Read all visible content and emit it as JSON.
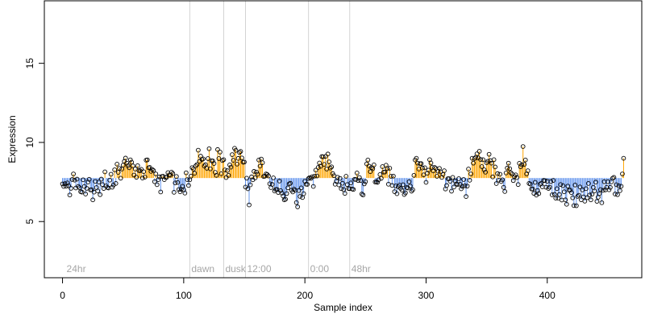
{
  "chart_data": {
    "type": "scatter",
    "title": "",
    "xlabel": "Sample index",
    "ylabel": "Expression",
    "xlim": [
      -15,
      478
    ],
    "ylim": [
      1.45,
      18.95
    ],
    "x_ticks": [
      0,
      100,
      200,
      300,
      400
    ],
    "y_ticks": [
      5,
      10,
      15
    ],
    "baseline": 7.75,
    "colors": {
      "above": "#FFA500",
      "below": "#6495ED",
      "event_lines": "#D3D3D3",
      "event_labels": "#A6A6A6",
      "points": "#000000"
    },
    "event_markers": [
      {
        "label": "24hr",
        "x": 2
      },
      {
        "label": "dawn",
        "x": 105
      },
      {
        "label": "dusk",
        "x": 133
      },
      {
        "label": "12:00",
        "x": 151
      },
      {
        "label": "0:00",
        "x": 203
      },
      {
        "label": "48hr",
        "x": 237
      }
    ],
    "anchors": [
      [
        0,
        7.0
      ],
      [
        4,
        7.6
      ],
      [
        8,
        7.0
      ],
      [
        12,
        7.6
      ],
      [
        16,
        7.0
      ],
      [
        20,
        7.2
      ],
      [
        24,
        6.9
      ],
      [
        28,
        6.8
      ],
      [
        32,
        7.2
      ],
      [
        36,
        7.6
      ],
      [
        40,
        7.3
      ],
      [
        44,
        7.9
      ],
      [
        48,
        8.2
      ],
      [
        52,
        8.6
      ],
      [
        56,
        8.5
      ],
      [
        60,
        8.3
      ],
      [
        64,
        8.0
      ],
      [
        68,
        8.6
      ],
      [
        72,
        8.7
      ],
      [
        76,
        8.2
      ],
      [
        80,
        7.4
      ],
      [
        84,
        7.8
      ],
      [
        88,
        8.0
      ],
      [
        92,
        7.7
      ],
      [
        96,
        7.3
      ],
      [
        100,
        7.0
      ],
      [
        104,
        7.6
      ],
      [
        108,
        8.3
      ],
      [
        112,
        8.8
      ],
      [
        116,
        9.1
      ],
      [
        120,
        9.0
      ],
      [
        124,
        8.9
      ],
      [
        128,
        8.8
      ],
      [
        132,
        8.8
      ],
      [
        136,
        8.6
      ],
      [
        140,
        9.1
      ],
      [
        144,
        9.2
      ],
      [
        148,
        9.0
      ],
      [
        152,
        7.6
      ],
      [
        154,
        6.4
      ],
      [
        156,
        8.0
      ],
      [
        160,
        7.8
      ],
      [
        164,
        8.6
      ],
      [
        168,
        7.8
      ],
      [
        172,
        7.4
      ],
      [
        176,
        7.2
      ],
      [
        180,
        6.9
      ],
      [
        184,
        6.8
      ],
      [
        188,
        6.8
      ],
      [
        192,
        6.7
      ],
      [
        196,
        6.7
      ],
      [
        200,
        6.9
      ],
      [
        204,
        7.2
      ],
      [
        208,
        7.5
      ],
      [
        212,
        8.3
      ],
      [
        216,
        9.0
      ],
      [
        220,
        8.6
      ],
      [
        224,
        7.8
      ],
      [
        228,
        7.4
      ],
      [
        232,
        7.3
      ],
      [
        236,
        7.0
      ],
      [
        240,
        7.2
      ],
      [
        244,
        7.6
      ],
      [
        248,
        7.2
      ],
      [
        252,
        8.5
      ],
      [
        256,
        8.2
      ],
      [
        260,
        8.0
      ],
      [
        264,
        7.9
      ],
      [
        268,
        7.8
      ],
      [
        272,
        7.3
      ],
      [
        276,
        7.4
      ],
      [
        280,
        7.2
      ],
      [
        284,
        7.0
      ],
      [
        288,
        7.4
      ],
      [
        292,
        8.4
      ],
      [
        296,
        8.7
      ],
      [
        300,
        8.0
      ],
      [
        304,
        8.6
      ],
      [
        308,
        8.3
      ],
      [
        312,
        8.0
      ],
      [
        316,
        7.6
      ],
      [
        320,
        7.8
      ],
      [
        324,
        7.4
      ],
      [
        328,
        7.6
      ],
      [
        332,
        7.3
      ],
      [
        336,
        7.4
      ],
      [
        340,
        8.8
      ],
      [
        344,
        9.2
      ],
      [
        348,
        8.4
      ],
      [
        352,
        8.7
      ],
      [
        356,
        8.5
      ],
      [
        360,
        7.9
      ],
      [
        364,
        7.6
      ],
      [
        368,
        8.3
      ],
      [
        372,
        8.0
      ],
      [
        376,
        7.7
      ],
      [
        380,
        8.9
      ],
      [
        384,
        8.0
      ],
      [
        388,
        7.2
      ],
      [
        392,
        7.0
      ],
      [
        396,
        7.2
      ],
      [
        400,
        7.3
      ],
      [
        404,
        7.0
      ],
      [
        408,
        6.9
      ],
      [
        412,
        7.0
      ],
      [
        416,
        6.5
      ],
      [
        420,
        6.6
      ],
      [
        424,
        6.7
      ],
      [
        428,
        6.8
      ],
      [
        432,
        7.0
      ],
      [
        436,
        6.8
      ],
      [
        440,
        7.0
      ],
      [
        444,
        6.5
      ],
      [
        448,
        6.9
      ],
      [
        452,
        7.2
      ],
      [
        456,
        7.0
      ],
      [
        460,
        7.1
      ],
      [
        463,
        8.2
      ]
    ],
    "n_points": 464
  }
}
